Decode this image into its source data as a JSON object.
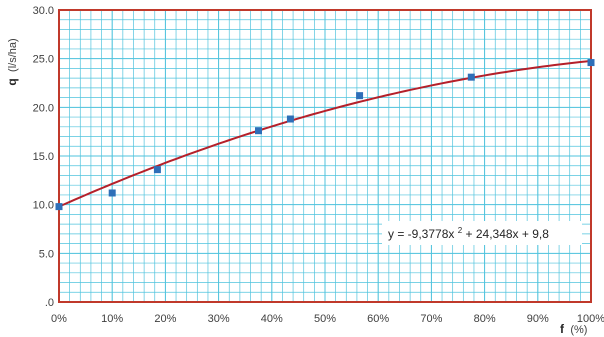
{
  "chart_data": {
    "type": "scatter",
    "x_tick_labels": [
      "0%",
      "10%",
      "20%",
      "30%",
      "40%",
      "50%",
      "60%",
      "70%",
      "80%",
      "90%",
      "100%"
    ],
    "y_tick_labels": [
      ".0",
      "5.0",
      "10.0",
      "15.0",
      "20.0",
      "25.0",
      "30.0"
    ],
    "x_ticks": [
      0,
      0.1,
      0.2,
      0.3,
      0.4,
      0.5,
      0.6,
      0.7,
      0.8,
      0.9,
      1.0
    ],
    "y_ticks": [
      0,
      5,
      10,
      15,
      20,
      25,
      30
    ],
    "xlim": [
      0,
      1
    ],
    "ylim": [
      0,
      30
    ],
    "xlabel": "f",
    "xlabel_unit": "(%)",
    "ylabel": "q",
    "ylabel_unit": "(l/s/ha)",
    "grid": true,
    "minor_grid_per_major": 5,
    "series": [
      {
        "x": [
          0.0,
          0.1,
          0.185,
          0.375,
          0.435,
          0.565,
          0.775,
          1.0
        ],
        "y": [
          9.8,
          11.2,
          13.6,
          17.6,
          18.8,
          21.2,
          23.1,
          24.6
        ]
      }
    ],
    "trendline": {
      "kind": "polynomial-2",
      "coefficients": {
        "a": -9.3778,
        "b": 24.348,
        "c": 9.8
      },
      "equation_prefix": "y = -9,3778x",
      "equation_sup": "2",
      "equation_suffix": " + 24,348x + 9,8",
      "equation_position": "lower-right"
    },
    "colors": {
      "plot_border": "#c0392b",
      "grid": "#4fc3dd",
      "marker": "#2e6fb8",
      "trendline": "#b5202a"
    }
  }
}
